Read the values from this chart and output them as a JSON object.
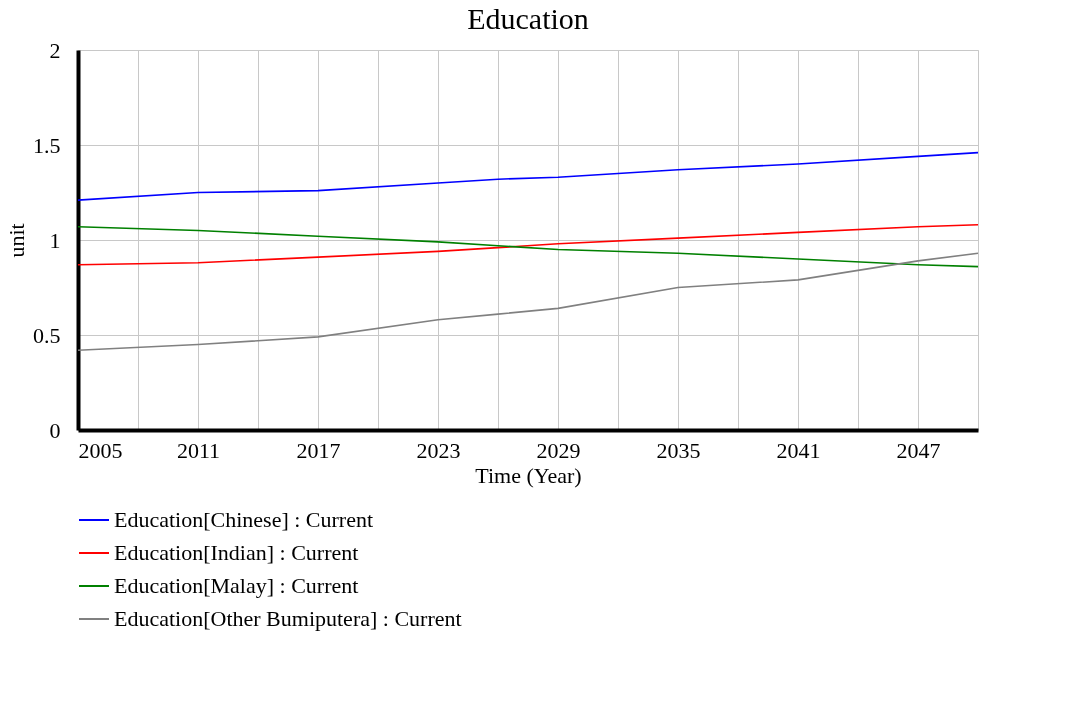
{
  "chart_data": {
    "type": "line",
    "title": "Education",
    "xlabel": "Time (Year)",
    "ylabel": "unit",
    "x": [
      2005,
      2011,
      2017,
      2023,
      2026,
      2029,
      2035,
      2041,
      2047,
      2050
    ],
    "xlim": [
      2005,
      2050
    ],
    "xticks": [
      2005,
      {
        "value": 2008,
        "label": null
      },
      2011,
      {
        "value": 2014,
        "label": null
      },
      2017,
      {
        "value": 2020,
        "label": null
      },
      2023,
      {
        "value": 2026,
        "label": null
      },
      2029,
      {
        "value": 2032,
        "label": null
      },
      2035,
      {
        "value": 2038,
        "label": null
      },
      2041,
      {
        "value": 2044,
        "label": null
      },
      2047,
      {
        "value": 2050,
        "label": null
      }
    ],
    "ylim": [
      0,
      2
    ],
    "yticks": [
      0,
      0.5,
      1,
      1.5,
      2
    ],
    "grid": true,
    "legend": "bottom",
    "series": [
      {
        "name": "Education[Chinese] : Current",
        "color": "#0000ff",
        "values": [
          1.21,
          1.25,
          1.26,
          1.3,
          1.32,
          1.33,
          1.37,
          1.4,
          1.44,
          1.46
        ]
      },
      {
        "name": "Education[Indian] : Current",
        "color": "#ff0000",
        "values": [
          0.87,
          0.88,
          0.91,
          0.94,
          0.96,
          0.98,
          1.01,
          1.04,
          1.07,
          1.08
        ]
      },
      {
        "name": "Education[Malay] : Current",
        "color": "#008000",
        "values": [
          1.07,
          1.05,
          1.02,
          0.99,
          0.97,
          0.95,
          0.93,
          0.9,
          0.87,
          0.86
        ]
      },
      {
        "name": "Education[Other Bumiputera] : Current",
        "color": "#808080",
        "values": [
          0.42,
          0.45,
          0.49,
          0.58,
          0.61,
          0.64,
          0.75,
          0.79,
          0.89,
          0.93
        ]
      }
    ]
  }
}
